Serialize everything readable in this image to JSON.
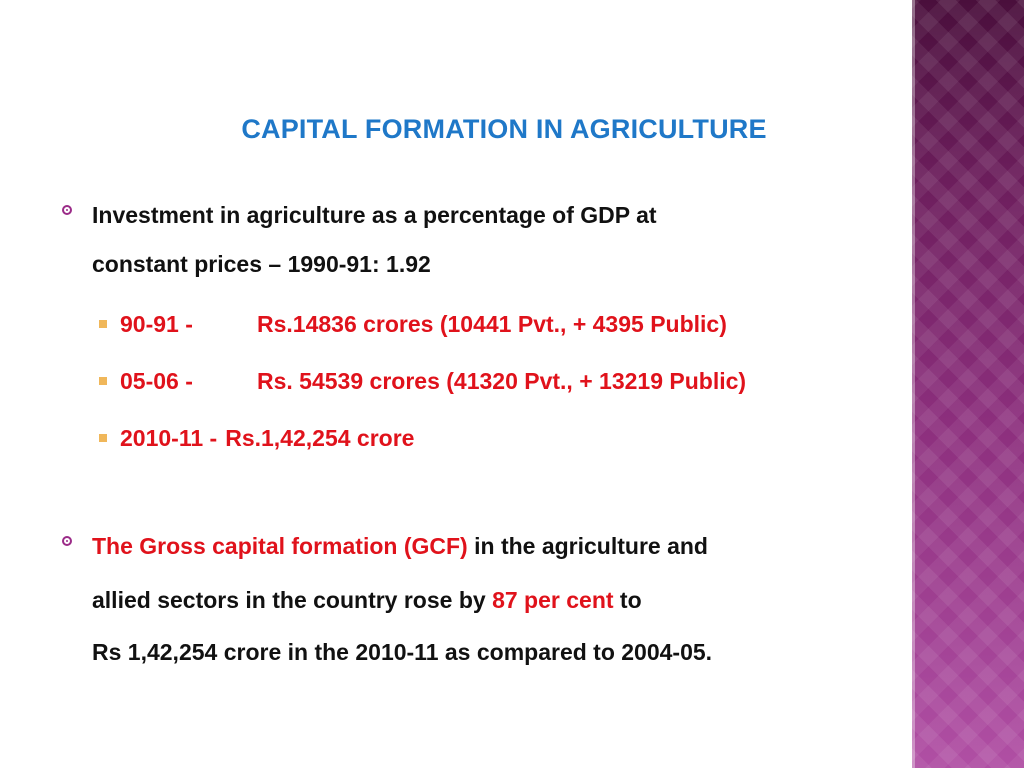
{
  "slide": {
    "title": "CAPITAL FORMATION IN AGRICULTURE",
    "bullet1": {
      "line1": "Investment in agriculture as a percentage of GDP at",
      "line2": "constant prices – 1990-91: 1.92",
      "subitems": [
        {
          "period": "90-91 -",
          "value": "Rs.14836 crores (10441 Pvt., + 4395 Public)"
        },
        {
          "period": "05-06  -",
          "value": "Rs. 54539 crores (41320 Pvt., + 13219 Public)"
        },
        {
          "period": "2010-11 -",
          "value": "Rs.1,42,254 crore"
        }
      ]
    },
    "bullet2": {
      "line1_red": "The  Gross capital formation (GCF)",
      "line1_black": " in the agriculture and",
      "line2_black": "allied sectors in the country rose by ",
      "line2_red": "87 per cent",
      "line2_end": " to",
      "line3": "Rs 1,42,254 crore in the 2010-11 as compared to 2004-05."
    },
    "colors": {
      "title": "#1f78c8",
      "highlight": "#e0121b",
      "bullet_marker": "#9b2b88",
      "sub_marker": "#f0b75a",
      "band_top": "#4a0f3c",
      "band_bottom": "#b04fa4"
    }
  }
}
